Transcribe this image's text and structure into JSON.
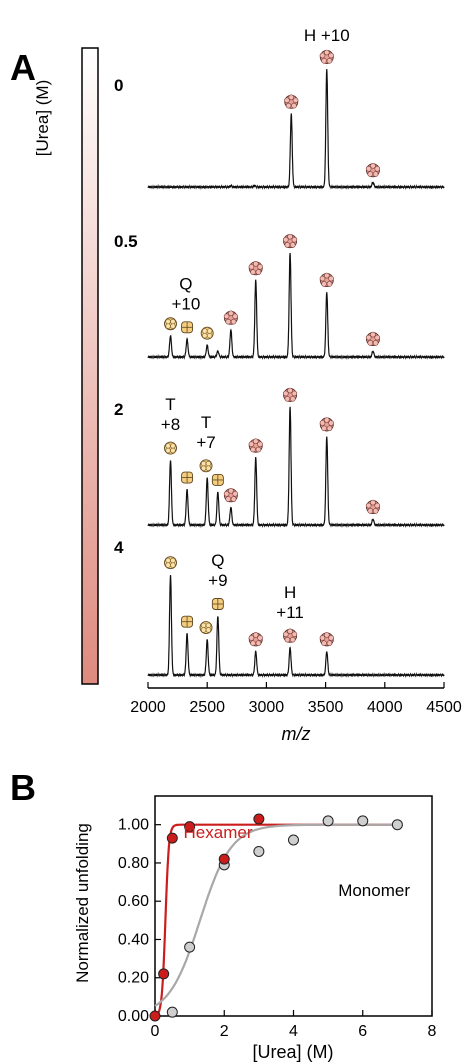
{
  "figure": {
    "panel_a_label": "A",
    "panel_b_label": "B"
  },
  "chart_data": [
    {
      "type": "line",
      "panel": "A",
      "title": "",
      "xlabel": "m/z",
      "xlim": [
        2000,
        4500
      ],
      "xticks": [
        2000,
        2500,
        3000,
        3500,
        4000,
        4500
      ],
      "xtick_labels": [
        "2000",
        "2500",
        "3000",
        "3500",
        "4000",
        "4500"
      ],
      "colorbar": {
        "label": "[Urea] (M)",
        "gradient": [
          "#ffffff",
          "#de8a7e"
        ]
      },
      "series": [
        {
          "name": "0",
          "peaks": [
            [
              2700,
              0.01
            ],
            [
              2900,
              0.01
            ],
            [
              3210,
              0.62
            ],
            [
              3510,
              1.0
            ],
            [
              3900,
              0.04
            ]
          ],
          "markers": [
            {
              "x": 3210,
              "oligomer": "hexamer"
            },
            {
              "x": 3510,
              "oligomer": "hexamer"
            },
            {
              "x": 3900,
              "oligomer": "hexamer"
            }
          ],
          "annotations": [
            {
              "x": 3510,
              "line1": "H +10",
              "line2": ""
            }
          ]
        },
        {
          "name": "0.5",
          "peaks": [
            [
              2190,
              0.18
            ],
            [
              2330,
              0.15
            ],
            [
              2500,
              0.1
            ],
            [
              2590,
              0.05
            ],
            [
              2700,
              0.23
            ],
            [
              2910,
              0.65
            ],
            [
              3200,
              0.88
            ],
            [
              3510,
              0.55
            ],
            [
              3900,
              0.05
            ]
          ],
          "markers": [
            {
              "x": 2190,
              "oligomer": "tetramer"
            },
            {
              "x": 2330,
              "oligomer": "quartet"
            },
            {
              "x": 2500,
              "oligomer": "tetramer"
            },
            {
              "x": 2700,
              "oligomer": "hexamer"
            },
            {
              "x": 2910,
              "oligomer": "hexamer"
            },
            {
              "x": 3200,
              "oligomer": "hexamer"
            },
            {
              "x": 3510,
              "oligomer": "hexamer"
            },
            {
              "x": 3900,
              "oligomer": "hexamer"
            }
          ],
          "annotations": [
            {
              "x": 2320,
              "line1": "Q",
              "line2": "+10"
            }
          ]
        },
        {
          "name": "2",
          "peaks": [
            [
              2190,
              0.55
            ],
            [
              2330,
              0.3
            ],
            [
              2500,
              0.4
            ],
            [
              2590,
              0.28
            ],
            [
              2700,
              0.15
            ],
            [
              2910,
              0.57
            ],
            [
              3200,
              1.0
            ],
            [
              3510,
              0.75
            ],
            [
              3900,
              0.05
            ]
          ],
          "markers": [
            {
              "x": 2190,
              "oligomer": "tetramer"
            },
            {
              "x": 2330,
              "oligomer": "quartet"
            },
            {
              "x": 2490,
              "oligomer": "tetramer"
            },
            {
              "x": 2590,
              "oligomer": "quartet"
            },
            {
              "x": 2700,
              "oligomer": "hexamer"
            },
            {
              "x": 2910,
              "oligomer": "hexamer"
            },
            {
              "x": 3200,
              "oligomer": "hexamer"
            },
            {
              "x": 3510,
              "oligomer": "hexamer"
            },
            {
              "x": 3900,
              "oligomer": "hexamer"
            }
          ],
          "annotations": [
            {
              "x": 2190,
              "line1": "T",
              "line2": "+8"
            },
            {
              "x": 2490,
              "line1": "T",
              "line2": "+7"
            }
          ]
        },
        {
          "name": "4",
          "peaks": [
            [
              2190,
              0.85
            ],
            [
              2330,
              0.35
            ],
            [
              2500,
              0.3
            ],
            [
              2590,
              0.5
            ],
            [
              2910,
              0.2
            ],
            [
              3200,
              0.23
            ],
            [
              3510,
              0.2
            ]
          ],
          "markers": [
            {
              "x": 2190,
              "oligomer": "tetramer"
            },
            {
              "x": 2330,
              "oligomer": "quartet"
            },
            {
              "x": 2490,
              "oligomer": "tetramer"
            },
            {
              "x": 2590,
              "oligomer": "quartet"
            },
            {
              "x": 2910,
              "oligomer": "hexamer"
            },
            {
              "x": 3200,
              "oligomer": "hexamer"
            },
            {
              "x": 3510,
              "oligomer": "hexamer"
            }
          ],
          "annotations": [
            {
              "x": 2590,
              "line1": "Q",
              "line2": "+9"
            },
            {
              "x": 3200,
              "line1": "H",
              "line2": "+11"
            }
          ]
        }
      ],
      "marker_colors": {
        "hexamer": "#e8a097",
        "tetramer": "#f7cf80",
        "quartet": "#f5cd7e"
      }
    },
    {
      "type": "scatter",
      "panel": "B",
      "title": "",
      "xlabel": "[Urea] (M)",
      "ylabel": "Normalized unfolding",
      "xlim": [
        0,
        8
      ],
      "ylim": [
        0,
        1.15
      ],
      "xticks": [
        0,
        2,
        4,
        6,
        8
      ],
      "xtick_labels": [
        "0",
        "2",
        "4",
        "6",
        "8"
      ],
      "yticks": [
        0,
        0.2,
        0.4,
        0.6,
        0.8,
        1.0
      ],
      "ytick_labels": [
        "0.00",
        "0.20",
        "0.40",
        "0.60",
        "0.80",
        "1.00"
      ],
      "series": [
        {
          "name": "Hexamer",
          "color": "#cc1d1d",
          "fill": "#cc1d1d",
          "points": [
            [
              0,
              0.0
            ],
            [
              0.25,
              0.22
            ],
            [
              0.5,
              0.93
            ],
            [
              1,
              0.99
            ],
            [
              2,
              0.82
            ],
            [
              3,
              1.03
            ]
          ],
          "fit": {
            "midpoint": 0.3,
            "slope": 0.05
          }
        },
        {
          "name": "Monomer",
          "color": "#a8a8a8",
          "fill": "#cfcfcf",
          "points": [
            [
              0.5,
              0.02
            ],
            [
              1,
              0.36
            ],
            [
              2,
              0.79
            ],
            [
              3,
              0.86
            ],
            [
              4,
              0.92
            ],
            [
              5,
              1.02
            ],
            [
              6,
              1.02
            ],
            [
              7,
              1.0
            ]
          ],
          "fit": {
            "midpoint": 1.3,
            "slope": 0.45
          }
        }
      ]
    }
  ]
}
